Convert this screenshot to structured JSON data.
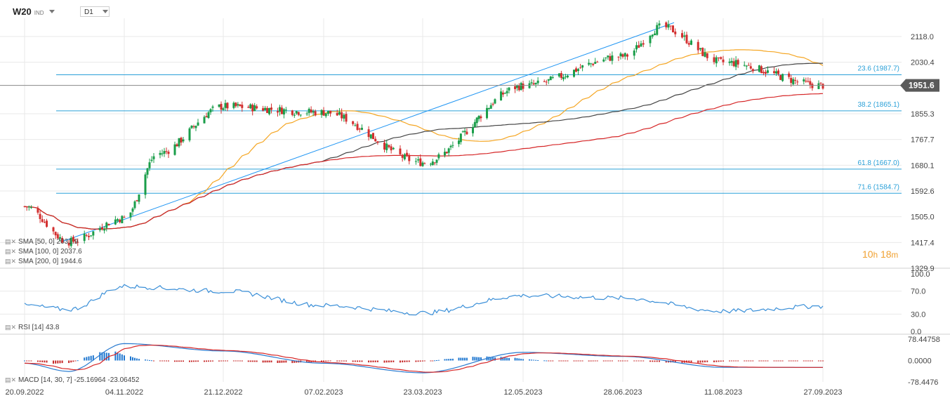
{
  "symbol": {
    "name": "W20",
    "suffix": "IND"
  },
  "timeframe": "D1",
  "timer": {
    "hours": "10",
    "h_unit": "h",
    "minutes": "18",
    "m_unit": "m"
  },
  "price_axis_labels": [
    "2118.0",
    "2030.4",
    "1855.3",
    "1767.7",
    "1680.1",
    "1592.6",
    "1505.0",
    "1417.4",
    "1329.9"
  ],
  "current_price": "1951.6",
  "fib_levels": [
    {
      "label": "23.6 (1987.7)",
      "value": 1987.7
    },
    {
      "label": "38.2 (1865.1)",
      "value": 1865.1
    },
    {
      "label": "61.8 (1667.0)",
      "value": 1667.0
    },
    {
      "label": "71.6 (1584.7)",
      "value": 1584.7
    }
  ],
  "indicators": {
    "sma1": {
      "label": "SMA [50, 0]",
      "value": "2031.9"
    },
    "sma2": {
      "label": "SMA [100, 0]",
      "value": "2037.6"
    },
    "sma3": {
      "label": "SMA [200, 0]",
      "value": "1944.6"
    },
    "rsi": {
      "label": "RSI [14]",
      "value": "43.8"
    },
    "macd": {
      "label": "MACD [14, 30, 7]",
      "value1": "-25.16964",
      "value2": "-23.06452"
    }
  },
  "rsi_axis_labels": [
    "100.0",
    "70.0",
    "30.0",
    "0.0"
  ],
  "macd_axis_labels": [
    "78.44758",
    "0.0000",
    "-78.4476"
  ],
  "date_labels": [
    "20.09.2022",
    "04.11.2022",
    "21.12.2022",
    "07.02.2023",
    "23.03.2023",
    "12.05.2023",
    "28.06.2023",
    "11.08.2023",
    "27.09.2023"
  ],
  "colors": {
    "sma50": "#f5a623",
    "sma100": "#444444",
    "sma200": "#d62728",
    "fib": "#2aa0d8",
    "trend": "#2196f3",
    "candle": "#1a9e4a",
    "grid": "#e9e9e9",
    "macd_up": "#1f77d0",
    "macd_down": "#c62828",
    "badge": "#5a5a5a"
  },
  "chart_data": {
    "type": "candlestick",
    "price_range": [
      1329.9,
      2180.0
    ],
    "close_anchors": [
      [
        "20.09.2022",
        1540
      ],
      [
        "10.10.2022",
        1420
      ],
      [
        "04.11.2022",
        1500
      ],
      [
        "20.11.2022",
        1720
      ],
      [
        "21.12.2022",
        1880
      ],
      [
        "07.02.2023",
        1860
      ],
      [
        "23.03.2023",
        1690
      ],
      [
        "12.05.2023",
        1950
      ],
      [
        "28.06.2023",
        2050
      ],
      [
        "15.07.2023",
        2150
      ],
      [
        "11.08.2023",
        2030
      ],
      [
        "27.09.2023",
        1951.6
      ]
    ],
    "rsi_range": [
      0,
      100
    ],
    "rsi_anchors": [
      [
        "20.09.2022",
        45
      ],
      [
        "10.10.2022",
        38
      ],
      [
        "04.11.2022",
        78
      ],
      [
        "21.12.2022",
        70
      ],
      [
        "07.02.2023",
        45
      ],
      [
        "23.03.2023",
        32
      ],
      [
        "12.05.2023",
        62
      ],
      [
        "28.06.2023",
        58
      ],
      [
        "11.08.2023",
        35
      ],
      [
        "27.09.2023",
        43.8
      ]
    ],
    "macd_range": [
      -78.4476,
      78.44758
    ],
    "macd_anchors": [
      [
        "20.09.2022",
        -10
      ],
      [
        "10.10.2022",
        -40
      ],
      [
        "04.11.2022",
        62
      ],
      [
        "21.12.2022",
        35
      ],
      [
        "07.02.2023",
        -10
      ],
      [
        "23.03.2023",
        -45
      ],
      [
        "12.05.2023",
        30
      ],
      [
        "28.06.2023",
        15
      ],
      [
        "11.08.2023",
        -25
      ],
      [
        "27.09.2023",
        -25.16964
      ]
    ]
  }
}
